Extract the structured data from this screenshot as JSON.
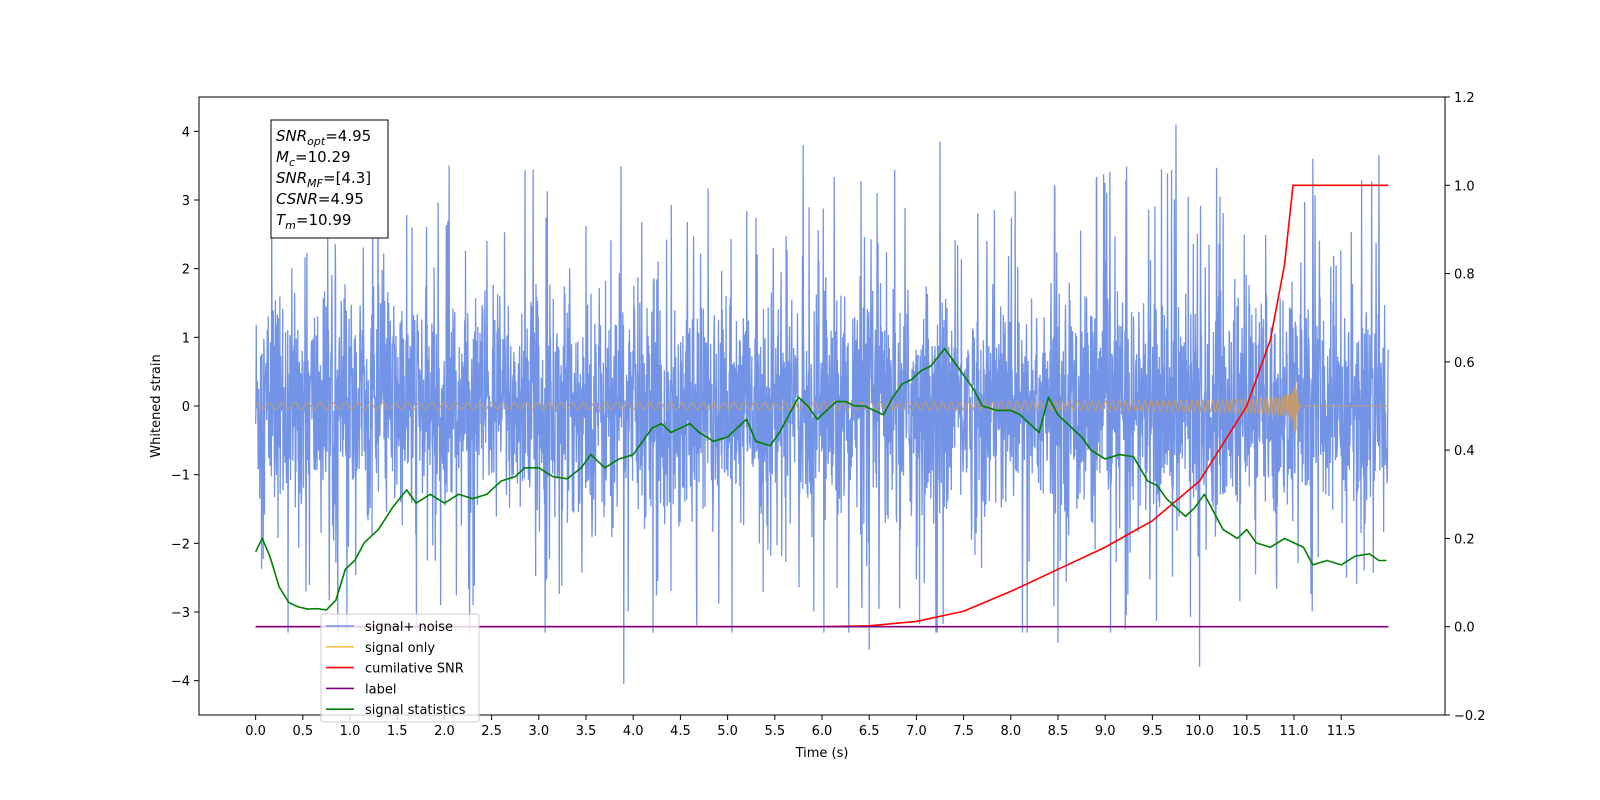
{
  "chart_data": {
    "type": "line",
    "xlabel": "Time (s)",
    "ylabel": "Whitened strain",
    "xlim": [
      -0.6,
      12.6
    ],
    "ylim": [
      -4.5,
      4.5
    ],
    "y2lim": [
      -0.2,
      1.2
    ],
    "x_ticks": [
      "0.0",
      "0.5",
      "1.0",
      "1.5",
      "2.0",
      "2.5",
      "3.0",
      "3.5",
      "4.0",
      "4.5",
      "5.0",
      "5.5",
      "6.0",
      "6.5",
      "7.0",
      "7.5",
      "8.0",
      "8.5",
      "9.0",
      "9.5",
      "10.0",
      "10.5",
      "11.0",
      "11.5"
    ],
    "y_ticks": [
      "4",
      "3",
      "2",
      "1",
      "0",
      "−1",
      "−2",
      "−3",
      "−4"
    ],
    "y2_ticks": [
      "1.2",
      "1.0",
      "0.8",
      "0.6",
      "0.4",
      "0.2",
      "0.0",
      "−0.2"
    ],
    "info_box": [
      {
        "sym": "SNR",
        "sub": "opt",
        "val": "=4.95"
      },
      {
        "sym": "M",
        "sub": "c",
        "val": "=10.29"
      },
      {
        "sym": "SNR",
        "sub": "MF",
        "val": "=[4.3]"
      },
      {
        "sym": "CSNR",
        "sub": "",
        "val": "=4.95"
      },
      {
        "sym": "T",
        "sub": "m",
        "val": "=10.99"
      }
    ],
    "legend": {
      "placement": "lower-left",
      "entries": [
        {
          "name": "signal+ noise",
          "color": "#7293e6"
        },
        {
          "name": "signal only",
          "color": "#ffc04d"
        },
        {
          "name": "cumilative SNR",
          "color": "#ff0000"
        },
        {
          "name": "label",
          "color": "#800080"
        },
        {
          "name": "signal statistics",
          "color": "#008000"
        }
      ]
    },
    "series": [
      {
        "name": "signal+ noise",
        "axis": "left",
        "color": "#7293e6",
        "t_start": 0.0,
        "t_end": 12.0,
        "envelope_sigma": 0.85,
        "spikes": [
          [
            3.9,
            -4.05
          ],
          [
            9.75,
            4.1
          ],
          [
            11.9,
            3.65
          ],
          [
            6.5,
            -3.55
          ],
          [
            8.5,
            -3.45
          ],
          [
            10.0,
            -3.8
          ],
          [
            5.8,
            3.8
          ],
          [
            7.25,
            3.85
          ],
          [
            2.05,
            3.5
          ],
          [
            11.2,
            3.6
          ]
        ]
      },
      {
        "name": "signal only",
        "axis": "left",
        "color": "#c39b73",
        "t_start": 0.0,
        "t_end": 12.0,
        "t_merge": 10.99,
        "peak_amplitude": 0.75
      },
      {
        "name": "cumilative SNR",
        "axis": "right",
        "color": "#ff0000",
        "points": [
          [
            0.0,
            0.0
          ],
          [
            6.0,
            0.0
          ],
          [
            6.5,
            0.002
          ],
          [
            7.0,
            0.012
          ],
          [
            7.5,
            0.035
          ],
          [
            8.0,
            0.08
          ],
          [
            8.5,
            0.13
          ],
          [
            9.0,
            0.18
          ],
          [
            9.5,
            0.24
          ],
          [
            10.0,
            0.33
          ],
          [
            10.5,
            0.5
          ],
          [
            10.75,
            0.65
          ],
          [
            10.9,
            0.82
          ],
          [
            10.99,
            1.0
          ],
          [
            12.0,
            1.0
          ]
        ]
      },
      {
        "name": "label",
        "axis": "right",
        "color": "#800080",
        "points": [
          [
            0.0,
            0.0
          ],
          [
            12.0,
            0.0
          ]
        ]
      },
      {
        "name": "signal statistics",
        "axis": "right",
        "color": "#008000",
        "points": [
          [
            0.0,
            0.17
          ],
          [
            0.07,
            0.2
          ],
          [
            0.15,
            0.16
          ],
          [
            0.25,
            0.09
          ],
          [
            0.35,
            0.055
          ],
          [
            0.45,
            0.045
          ],
          [
            0.55,
            0.04
          ],
          [
            0.65,
            0.041
          ],
          [
            0.75,
            0.038
          ],
          [
            0.85,
            0.06
          ],
          [
            0.95,
            0.13
          ],
          [
            1.05,
            0.15
          ],
          [
            1.15,
            0.19
          ],
          [
            1.3,
            0.22
          ],
          [
            1.45,
            0.27
          ],
          [
            1.6,
            0.31
          ],
          [
            1.7,
            0.28
          ],
          [
            1.85,
            0.3
          ],
          [
            2.0,
            0.28
          ],
          [
            2.15,
            0.3
          ],
          [
            2.3,
            0.29
          ],
          [
            2.45,
            0.3
          ],
          [
            2.6,
            0.33
          ],
          [
            2.75,
            0.34
          ],
          [
            2.85,
            0.36
          ],
          [
            3.0,
            0.36
          ],
          [
            3.15,
            0.34
          ],
          [
            3.3,
            0.335
          ],
          [
            3.45,
            0.36
          ],
          [
            3.55,
            0.39
          ],
          [
            3.7,
            0.36
          ],
          [
            3.85,
            0.38
          ],
          [
            4.0,
            0.39
          ],
          [
            4.1,
            0.42
          ],
          [
            4.2,
            0.45
          ],
          [
            4.3,
            0.46
          ],
          [
            4.4,
            0.44
          ],
          [
            4.5,
            0.45
          ],
          [
            4.6,
            0.46
          ],
          [
            4.7,
            0.44
          ],
          [
            4.85,
            0.42
          ],
          [
            5.0,
            0.43
          ],
          [
            5.1,
            0.45
          ],
          [
            5.2,
            0.47
          ],
          [
            5.3,
            0.42
          ],
          [
            5.45,
            0.41
          ],
          [
            5.55,
            0.44
          ],
          [
            5.65,
            0.48
          ],
          [
            5.75,
            0.52
          ],
          [
            5.85,
            0.5
          ],
          [
            5.95,
            0.47
          ],
          [
            6.05,
            0.49
          ],
          [
            6.15,
            0.51
          ],
          [
            6.25,
            0.51
          ],
          [
            6.35,
            0.5
          ],
          [
            6.45,
            0.5
          ],
          [
            6.55,
            0.49
          ],
          [
            6.65,
            0.48
          ],
          [
            6.75,
            0.52
          ],
          [
            6.85,
            0.55
          ],
          [
            6.95,
            0.56
          ],
          [
            7.05,
            0.58
          ],
          [
            7.15,
            0.59
          ],
          [
            7.3,
            0.63
          ],
          [
            7.4,
            0.6
          ],
          [
            7.5,
            0.57
          ],
          [
            7.6,
            0.54
          ],
          [
            7.7,
            0.5
          ],
          [
            7.85,
            0.49
          ],
          [
            8.0,
            0.49
          ],
          [
            8.1,
            0.48
          ],
          [
            8.2,
            0.46
          ],
          [
            8.3,
            0.44
          ],
          [
            8.4,
            0.52
          ],
          [
            8.5,
            0.48
          ],
          [
            8.6,
            0.46
          ],
          [
            8.75,
            0.43
          ],
          [
            8.85,
            0.4
          ],
          [
            9.0,
            0.38
          ],
          [
            9.15,
            0.39
          ],
          [
            9.3,
            0.385
          ],
          [
            9.45,
            0.33
          ],
          [
            9.55,
            0.32
          ],
          [
            9.65,
            0.29
          ],
          [
            9.75,
            0.27
          ],
          [
            9.85,
            0.25
          ],
          [
            9.95,
            0.27
          ],
          [
            10.05,
            0.3
          ],
          [
            10.15,
            0.26
          ],
          [
            10.25,
            0.22
          ],
          [
            10.4,
            0.2
          ],
          [
            10.5,
            0.22
          ],
          [
            10.6,
            0.19
          ],
          [
            10.75,
            0.18
          ],
          [
            10.9,
            0.2
          ],
          [
            11.0,
            0.19
          ],
          [
            11.1,
            0.18
          ],
          [
            11.2,
            0.14
          ],
          [
            11.35,
            0.15
          ],
          [
            11.5,
            0.14
          ],
          [
            11.65,
            0.16
          ],
          [
            11.8,
            0.165
          ],
          [
            11.9,
            0.15
          ],
          [
            11.98,
            0.15
          ]
        ]
      }
    ]
  }
}
